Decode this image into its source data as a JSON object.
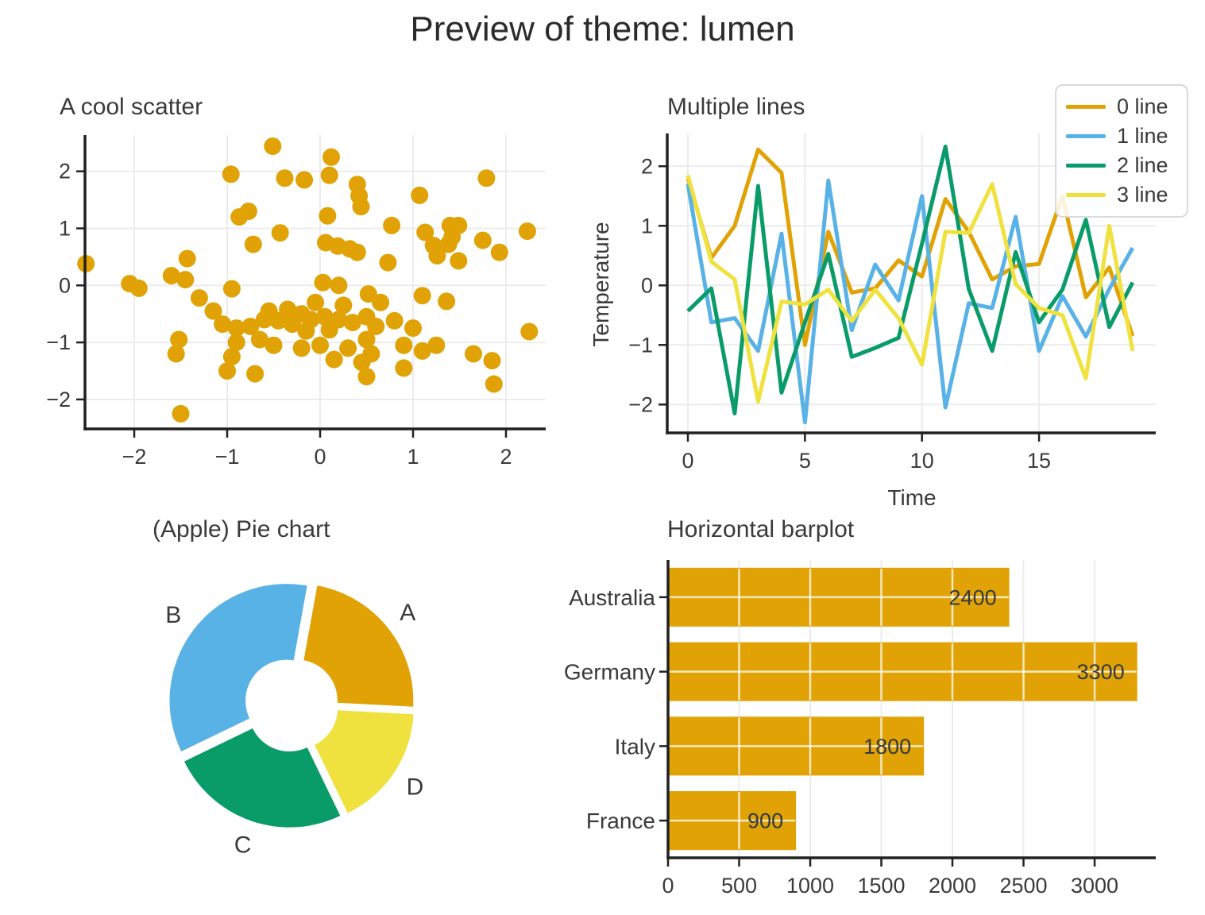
{
  "page": {
    "title": "Preview of theme: lumen"
  },
  "palette": {
    "orange": "#E0A204",
    "blue": "#58B2E6",
    "green": "#0A9C68",
    "yellow": "#F0E23E",
    "text": "#3A3A3A",
    "spine": "#212121",
    "grid": "#ECECEC",
    "bar_label": "#343A40"
  },
  "chart_data": [
    {
      "id": "scatter",
      "type": "scatter",
      "title": "A cool scatter",
      "xlabel": "",
      "ylabel": "",
      "xlim": [
        -2.53,
        2.43
      ],
      "ylim": [
        -2.52,
        2.64
      ],
      "xticks": [
        -2,
        -1,
        0,
        1,
        2
      ],
      "yticks": [
        -2,
        -1,
        0,
        1,
        2
      ],
      "grid": true,
      "color": "orange",
      "points": [
        [
          -2.52,
          0.38
        ],
        [
          -2.05,
          0.03
        ],
        [
          -1.95,
          -0.05
        ],
        [
          -1.6,
          0.17
        ],
        [
          -1.45,
          0.1
        ],
        [
          -1.52,
          -0.95
        ],
        [
          -1.55,
          -1.2
        ],
        [
          -1.5,
          -2.25
        ],
        [
          -1.43,
          0.47
        ],
        [
          -1.3,
          -0.22
        ],
        [
          -1.15,
          -0.45
        ],
        [
          -1.05,
          -0.68
        ],
        [
          -1.0,
          -1.5
        ],
        [
          -0.95,
          -0.06
        ],
        [
          -0.95,
          -1.25
        ],
        [
          -0.96,
          1.95
        ],
        [
          -0.9,
          -0.75
        ],
        [
          -0.9,
          -1.0
        ],
        [
          -0.87,
          1.2
        ],
        [
          -0.77,
          1.3
        ],
        [
          -0.75,
          -0.72
        ],
        [
          -0.72,
          0.72
        ],
        [
          -0.7,
          -1.55
        ],
        [
          -0.65,
          -0.95
        ],
        [
          -0.6,
          -0.6
        ],
        [
          -0.55,
          -0.45
        ],
        [
          -0.51,
          2.44
        ],
        [
          -0.5,
          -1.05
        ],
        [
          -0.45,
          -0.62
        ],
        [
          -0.43,
          0.92
        ],
        [
          -0.38,
          1.88
        ],
        [
          -0.35,
          -0.42
        ],
        [
          -0.3,
          -0.68
        ],
        [
          -0.2,
          -0.5
        ],
        [
          -0.2,
          -1.1
        ],
        [
          -0.17,
          1.85
        ],
        [
          -0.15,
          -0.8
        ],
        [
          -0.1,
          -0.6
        ],
        [
          -0.05,
          -0.3
        ],
        [
          0.0,
          -1.05
        ],
        [
          0.03,
          0.05
        ],
        [
          0.05,
          -0.55
        ],
        [
          0.06,
          0.75
        ],
        [
          0.08,
          1.22
        ],
        [
          0.1,
          1.93
        ],
        [
          0.1,
          -0.78
        ],
        [
          0.12,
          2.25
        ],
        [
          0.15,
          -1.3
        ],
        [
          0.19,
          0.69
        ],
        [
          0.2,
          0.0
        ],
        [
          0.2,
          -0.6
        ],
        [
          0.25,
          -0.35
        ],
        [
          0.3,
          -1.1
        ],
        [
          0.32,
          0.64
        ],
        [
          0.35,
          -0.65
        ],
        [
          0.4,
          1.77
        ],
        [
          0.4,
          0.58
        ],
        [
          0.42,
          1.57
        ],
        [
          0.44,
          1.38
        ],
        [
          0.45,
          -1.35
        ],
        [
          0.5,
          -0.55
        ],
        [
          0.5,
          -0.95
        ],
        [
          0.5,
          -1.6
        ],
        [
          0.52,
          -0.15
        ],
        [
          0.55,
          -1.2
        ],
        [
          0.6,
          -0.72
        ],
        [
          0.65,
          -0.3
        ],
        [
          0.73,
          0.4
        ],
        [
          0.77,
          1.05
        ],
        [
          0.8,
          -0.62
        ],
        [
          0.9,
          -1.05
        ],
        [
          0.9,
          -1.45
        ],
        [
          1.0,
          -0.75
        ],
        [
          1.07,
          1.58
        ],
        [
          1.1,
          -0.18
        ],
        [
          1.1,
          -1.15
        ],
        [
          1.13,
          0.93
        ],
        [
          1.22,
          0.7
        ],
        [
          1.25,
          -1.05
        ],
        [
          1.26,
          0.52
        ],
        [
          1.36,
          -0.28
        ],
        [
          1.4,
          1.05
        ],
        [
          1.42,
          0.85
        ],
        [
          1.38,
          0.72
        ],
        [
          1.49,
          1.05
        ],
        [
          1.49,
          0.43
        ],
        [
          1.65,
          -1.2
        ],
        [
          1.75,
          0.79
        ],
        [
          1.79,
          1.88
        ],
        [
          1.85,
          -1.32
        ],
        [
          1.87,
          -1.73
        ],
        [
          1.93,
          0.58
        ],
        [
          2.23,
          0.95
        ],
        [
          2.25,
          -0.81
        ]
      ]
    },
    {
      "id": "lines",
      "type": "line",
      "title": "Multiple lines",
      "xlabel": "Time",
      "ylabel": "Temperature",
      "xlim": [
        -0.6,
        20.0
      ],
      "ylim": [
        -2.5,
        2.55
      ],
      "xticks": [
        0,
        5,
        10,
        15
      ],
      "yticks": [
        -2,
        -1,
        0,
        1,
        2
      ],
      "grid": true,
      "legend_position": "upper right",
      "x": [
        0,
        1,
        2,
        3,
        4,
        5,
        6,
        7,
        8,
        9,
        10,
        11,
        12,
        13,
        14,
        15,
        16,
        17,
        18,
        19
      ],
      "series": [
        {
          "name": "0 line",
          "color": "orange",
          "values": [
            1.8,
            0.46,
            1.0,
            2.28,
            1.89,
            -1.0,
            0.9,
            -0.12,
            -0.05,
            0.42,
            0.15,
            1.45,
            0.9,
            0.1,
            0.32,
            0.36,
            1.5,
            -0.2,
            0.3,
            -0.85
          ]
        },
        {
          "name": "1 line",
          "color": "blue",
          "values": [
            1.7,
            -0.62,
            -0.55,
            -1.1,
            0.87,
            -2.3,
            1.76,
            -0.75,
            0.35,
            -0.25,
            1.5,
            -2.05,
            -0.3,
            -0.38,
            1.15,
            -1.1,
            -0.18,
            -0.86,
            -0.06,
            0.63
          ]
        },
        {
          "name": "2 line",
          "color": "green",
          "values": [
            -0.43,
            -0.05,
            -2.15,
            1.67,
            -1.8,
            -0.62,
            0.53,
            -1.2,
            -1.05,
            -0.88,
            0.7,
            2.33,
            -0.06,
            -1.1,
            0.56,
            -0.62,
            -0.07,
            1.1,
            -0.7,
            0.05
          ]
        },
        {
          "name": "3 line",
          "color": "yellow",
          "values": [
            1.85,
            0.4,
            0.1,
            -1.95,
            -0.27,
            -0.32,
            -0.07,
            -0.6,
            -0.07,
            -0.55,
            -1.33,
            0.9,
            0.88,
            1.7,
            0.02,
            -0.38,
            -0.5,
            -1.56,
            1.0,
            -1.1
          ]
        }
      ]
    },
    {
      "id": "pie",
      "type": "pie",
      "title": "(Apple) Pie chart",
      "labels": [
        "A",
        "B",
        "C",
        "D"
      ],
      "values": [
        23,
        35,
        25,
        17
      ],
      "colors": [
        "orange",
        "blue",
        "green",
        "yellow"
      ],
      "start_angle": -3,
      "donut_hole": 0.35,
      "explode": 0.055
    },
    {
      "id": "bar",
      "type": "bar",
      "title": "Horizontal barplot",
      "orientation": "horizontal",
      "categories": [
        "Australia",
        "Germany",
        "Italy",
        "France"
      ],
      "values": [
        2400,
        3300,
        1800,
        900
      ],
      "bar_labels": [
        "2400",
        "3300",
        "1800",
        "900"
      ],
      "xticks": [
        0,
        500,
        1000,
        1500,
        2000,
        2500,
        3000
      ],
      "xlim": [
        0,
        3430
      ],
      "grid": true,
      "color": "orange"
    }
  ]
}
